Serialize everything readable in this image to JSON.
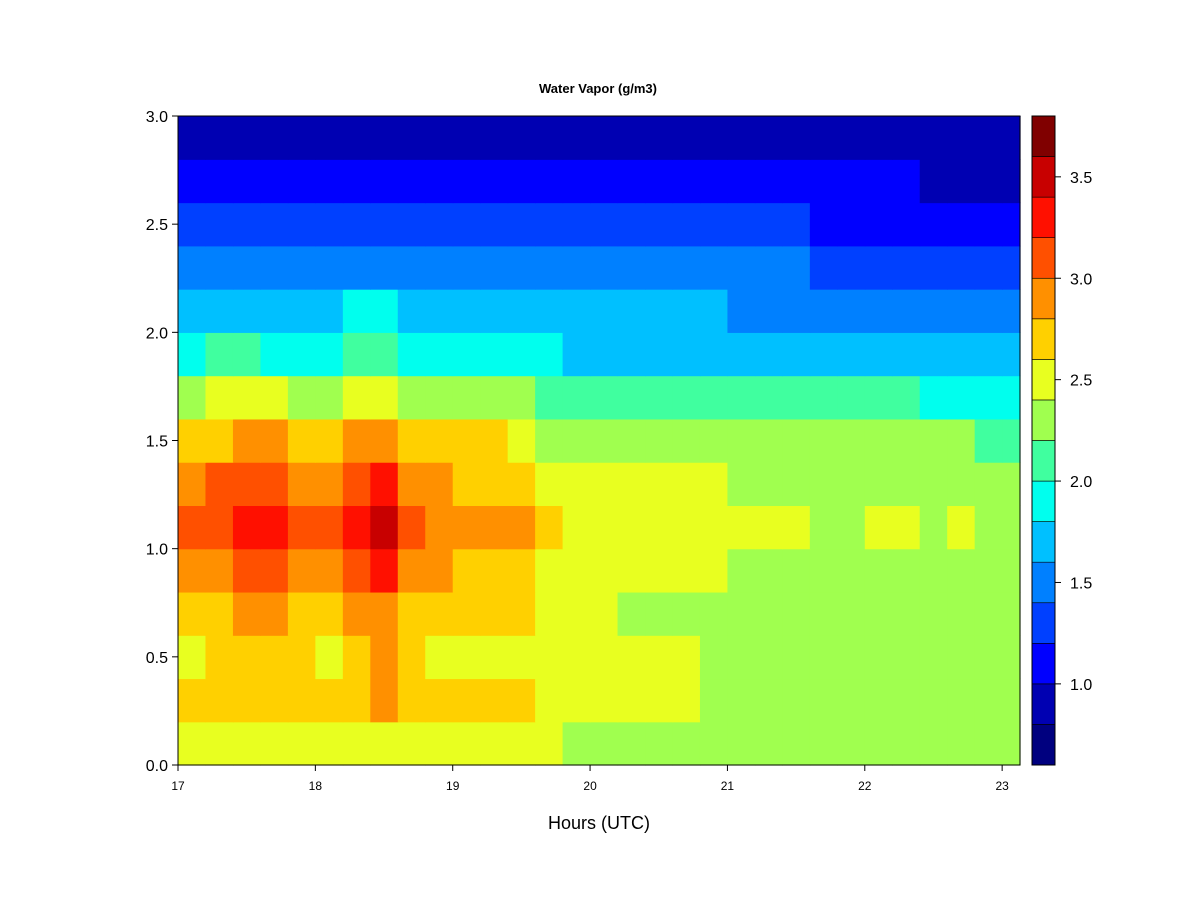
{
  "chart_data": {
    "type": "heatmap",
    "title": "Water Vapor (g/m3)",
    "xlabel": "Hours (UTC)",
    "ylabel": "",
    "xlim": [
      17,
      23.13
    ],
    "ylim": [
      0,
      3
    ],
    "x_ticks": [
      "17",
      "18",
      "19",
      "20",
      "21",
      "22",
      "23"
    ],
    "y_ticks": [
      "0.0",
      "0.5",
      "1.0",
      "1.5",
      "2.0",
      "2.5",
      "3.0"
    ],
    "x_bins": [
      17.0,
      17.2,
      17.4,
      17.6,
      17.8,
      18.0,
      18.2,
      18.4,
      18.6,
      18.8,
      19.0,
      19.2,
      19.4,
      19.6,
      19.8,
      20.0,
      20.2,
      20.4,
      20.6,
      20.8,
      21.0,
      21.2,
      21.4,
      21.6,
      21.8,
      22.0,
      22.2,
      22.4,
      22.6,
      22.8,
      23.0
    ],
    "y_bins": [
      0.0,
      0.2,
      0.4,
      0.6,
      0.8,
      1.0,
      1.2,
      1.4,
      1.6,
      1.8,
      2.0,
      2.2,
      2.4,
      2.6,
      2.8,
      3.0
    ],
    "z_values": [
      [
        2.4,
        2.45,
        2.4,
        2.4,
        2.4,
        2.45,
        2.45,
        2.5,
        2.45,
        2.4,
        2.4,
        2.4,
        2.45,
        2.4,
        2.35,
        2.35,
        2.3,
        2.3,
        2.3,
        2.3,
        2.3,
        2.3,
        2.3,
        2.3,
        2.25,
        2.3,
        2.3,
        2.3,
        2.3,
        2.25,
        2.25
      ],
      [
        2.6,
        2.65,
        2.7,
        2.7,
        2.65,
        2.6,
        2.75,
        2.8,
        2.65,
        2.6,
        2.6,
        2.6,
        2.6,
        2.5,
        2.45,
        2.45,
        2.4,
        2.4,
        2.4,
        2.35,
        2.35,
        2.3,
        2.3,
        2.3,
        2.3,
        2.3,
        2.3,
        2.3,
        2.3,
        2.3,
        2.25
      ],
      [
        2.5,
        2.6,
        2.7,
        2.7,
        2.6,
        2.55,
        2.7,
        2.8,
        2.6,
        2.55,
        2.55,
        2.55,
        2.55,
        2.5,
        2.45,
        2.45,
        2.45,
        2.4,
        2.4,
        2.35,
        2.35,
        2.3,
        2.3,
        2.3,
        2.3,
        2.3,
        2.3,
        2.3,
        2.3,
        2.25,
        2.2
      ],
      [
        2.7,
        2.75,
        2.8,
        2.85,
        2.75,
        2.7,
        2.85,
        2.95,
        2.7,
        2.65,
        2.6,
        2.6,
        2.6,
        2.45,
        2.4,
        2.4,
        2.35,
        2.3,
        2.3,
        2.3,
        2.3,
        2.25,
        2.25,
        2.2,
        2.2,
        2.2,
        2.2,
        2.2,
        2.2,
        2.2,
        2.2
      ],
      [
        2.9,
        2.95,
        3.0,
        3.05,
        2.95,
        2.85,
        3.05,
        3.2,
        2.9,
        2.8,
        2.75,
        2.75,
        2.7,
        2.55,
        2.5,
        2.5,
        2.45,
        2.4,
        2.4,
        2.4,
        2.35,
        2.35,
        2.35,
        2.3,
        2.3,
        2.35,
        2.35,
        2.3,
        2.35,
        2.3,
        2.3
      ],
      [
        3.1,
        3.1,
        3.2,
        3.25,
        3.1,
        3.0,
        3.3,
        3.45,
        3.05,
        2.95,
        2.9,
        2.9,
        2.85,
        2.6,
        2.55,
        2.55,
        2.5,
        2.5,
        2.45,
        2.45,
        2.4,
        2.4,
        2.4,
        2.35,
        2.35,
        2.4,
        2.4,
        2.35,
        2.4,
        2.35,
        2.35
      ],
      [
        2.95,
        3.0,
        3.05,
        3.1,
        2.95,
        2.85,
        3.1,
        3.25,
        2.9,
        2.8,
        2.75,
        2.75,
        2.7,
        2.5,
        2.45,
        2.45,
        2.45,
        2.4,
        2.4,
        2.4,
        2.35,
        2.35,
        2.35,
        2.3,
        2.3,
        2.35,
        2.35,
        2.3,
        2.3,
        2.3,
        2.3
      ],
      [
        2.75,
        2.75,
        2.8,
        2.85,
        2.75,
        2.65,
        2.85,
        2.95,
        2.7,
        2.65,
        2.6,
        2.6,
        2.55,
        2.35,
        2.3,
        2.3,
        2.3,
        2.25,
        2.25,
        2.25,
        2.25,
        2.2,
        2.2,
        2.2,
        2.2,
        2.2,
        2.2,
        2.2,
        2.2,
        2.15,
        2.15
      ],
      [
        2.35,
        2.4,
        2.4,
        2.4,
        2.35,
        2.3,
        2.45,
        2.5,
        2.3,
        2.3,
        2.25,
        2.25,
        2.25,
        2.15,
        2.1,
        2.1,
        2.1,
        2.05,
        2.05,
        2.05,
        2.05,
        2.0,
        2.0,
        2.0,
        2.0,
        2.0,
        2.0,
        1.95,
        1.95,
        1.9,
        1.9
      ],
      [
        1.95,
        2.0,
        2.0,
        1.95,
        1.95,
        1.9,
        2.05,
        2.1,
        1.9,
        1.9,
        1.85,
        1.85,
        1.85,
        1.8,
        1.75,
        1.75,
        1.75,
        1.75,
        1.75,
        1.75,
        1.7,
        1.7,
        1.7,
        1.7,
        1.7,
        1.7,
        1.7,
        1.65,
        1.65,
        1.6,
        1.6
      ],
      [
        1.7,
        1.75,
        1.75,
        1.7,
        1.7,
        1.7,
        1.8,
        1.85,
        1.7,
        1.7,
        1.65,
        1.65,
        1.65,
        1.6,
        1.6,
        1.6,
        1.6,
        1.6,
        1.6,
        1.6,
        1.55,
        1.55,
        1.55,
        1.55,
        1.55,
        1.55,
        1.5,
        1.5,
        1.5,
        1.45,
        1.45
      ],
      [
        1.45,
        1.5,
        1.5,
        1.45,
        1.45,
        1.45,
        1.5,
        1.55,
        1.45,
        1.45,
        1.45,
        1.45,
        1.45,
        1.4,
        1.4,
        1.4,
        1.4,
        1.4,
        1.4,
        1.4,
        1.4,
        1.4,
        1.4,
        1.35,
        1.35,
        1.35,
        1.3,
        1.3,
        1.3,
        1.25,
        1.25
      ],
      [
        1.25,
        1.25,
        1.25,
        1.25,
        1.25,
        1.2,
        1.25,
        1.3,
        1.25,
        1.25,
        1.2,
        1.2,
        1.2,
        1.2,
        1.2,
        1.2,
        1.2,
        1.2,
        1.2,
        1.2,
        1.2,
        1.2,
        1.2,
        1.15,
        1.15,
        1.15,
        1.1,
        1.1,
        1.1,
        1.05,
        1.05
      ],
      [
        1.05,
        1.05,
        1.05,
        1.05,
        1.05,
        1.0,
        1.05,
        1.1,
        1.05,
        1.05,
        1.0,
        1.0,
        1.0,
        1.0,
        1.0,
        1.0,
        1.0,
        1.05,
        1.05,
        1.05,
        1.05,
        1.05,
        1.05,
        1.0,
        1.0,
        1.0,
        1.0,
        0.95,
        0.95,
        0.95,
        0.9
      ],
      [
        0.9,
        0.9,
        0.9,
        0.9,
        0.9,
        0.9,
        0.9,
        0.95,
        0.9,
        0.9,
        0.9,
        0.9,
        0.9,
        0.9,
        0.9,
        0.95,
        0.95,
        0.95,
        0.95,
        0.95,
        0.95,
        0.95,
        0.95,
        0.9,
        0.9,
        0.9,
        0.85,
        0.85,
        0.85,
        0.85,
        0.8
      ],
      [
        0.8,
        0.8,
        0.8,
        0.8,
        0.8,
        0.8,
        0.8,
        0.8,
        0.8,
        0.8,
        0.8,
        0.8,
        0.8,
        0.8,
        0.8,
        0.85,
        0.85,
        0.85,
        0.85,
        0.85,
        0.85,
        0.85,
        0.85,
        0.8,
        0.8,
        0.8,
        0.75,
        0.75,
        0.75,
        0.75,
        0.7
      ]
    ],
    "colorbar": {
      "levels": [
        0.6,
        0.8,
        1.0,
        1.2,
        1.4,
        1.6,
        1.8,
        2.0,
        2.2,
        2.4,
        2.6,
        2.8,
        3.0,
        3.2,
        3.4,
        3.6,
        3.8
      ],
      "colors": [
        "#00007f",
        "#0000b2",
        "#0000ff",
        "#0040ff",
        "#0080ff",
        "#00c0ff",
        "#00ffee",
        "#40ff9f",
        "#a0ff4f",
        "#e8ff20",
        "#ffd000",
        "#ff9000",
        "#ff5000",
        "#ff1000",
        "#c80000",
        "#800000"
      ],
      "tick_labels": [
        "1.0",
        "1.5",
        "2.0",
        "2.5",
        "3.0",
        "3.5"
      ],
      "tick_values": [
        1.0,
        1.5,
        2.0,
        2.5,
        3.0,
        3.5
      ]
    }
  }
}
